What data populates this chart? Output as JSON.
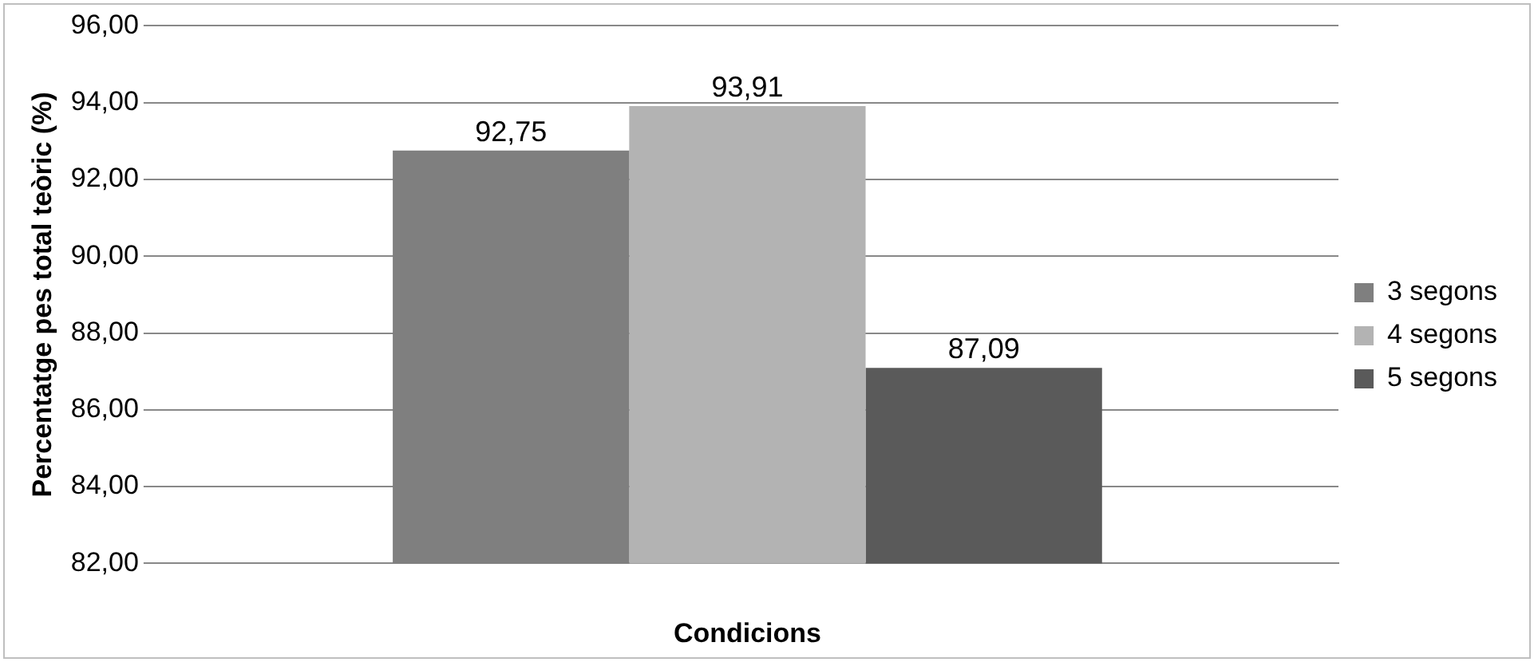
{
  "chart_data": {
    "type": "bar",
    "xlabel": "Condicions",
    "ylabel": "Percentatge pes total teòric (%)",
    "categories": [
      null
    ],
    "series": [
      {
        "name": "3 segons",
        "color": "#7f7f7f",
        "values": [
          92.75
        ],
        "value_labels": [
          "92,75"
        ]
      },
      {
        "name": "4 segons",
        "color": "#b3b3b3",
        "values": [
          93.91
        ],
        "value_labels": [
          "93,91"
        ]
      },
      {
        "name": "5 segons",
        "color": "#5a5a5a",
        "values": [
          87.09
        ],
        "value_labels": [
          "87,09"
        ]
      }
    ],
    "ylim": [
      82,
      96
    ],
    "yticks": [
      {
        "value": 82,
        "label": "82,00"
      },
      {
        "value": 84,
        "label": "84,00"
      },
      {
        "value": 86,
        "label": "86,00"
      },
      {
        "value": 88,
        "label": "88,00"
      },
      {
        "value": 90,
        "label": "90,00"
      },
      {
        "value": 92,
        "label": "92,00"
      },
      {
        "value": 94,
        "label": "94,00"
      },
      {
        "value": 96,
        "label": "96,00"
      }
    ],
    "grid": "y",
    "legend": "right"
  }
}
